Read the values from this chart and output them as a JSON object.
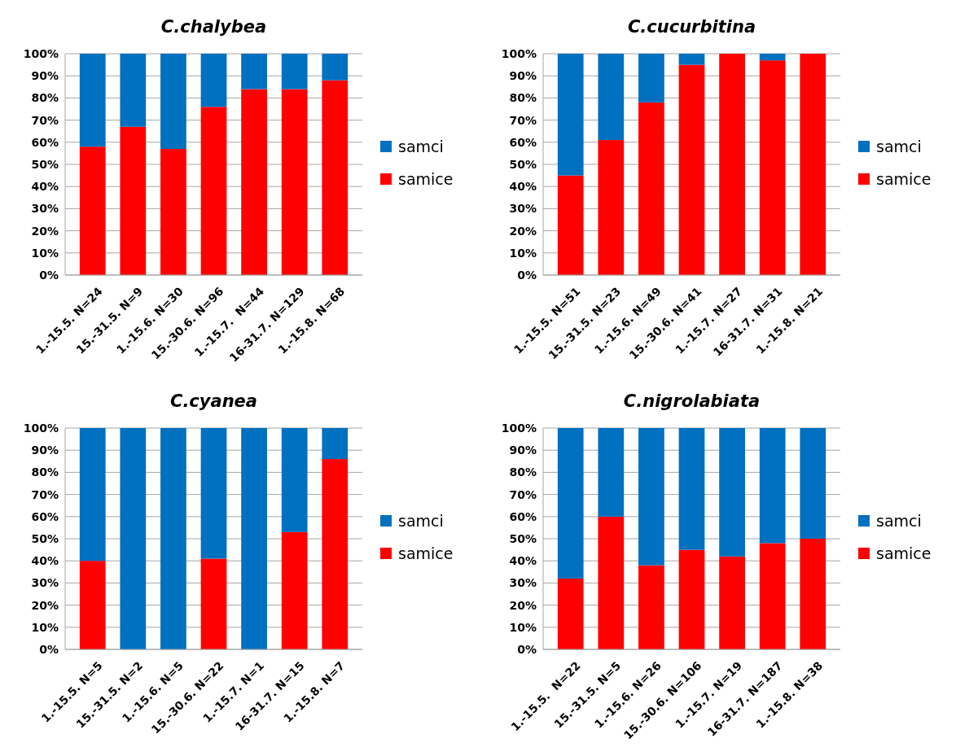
{
  "chart_data": [
    {
      "type": "bar",
      "title": "C.chalybea",
      "categories": [
        "1.-15.5. N=24",
        "15.-31.5. N=9",
        "1.-15.6. N=30",
        "15.-30.6. N=96",
        "1.-15.7.  N=44",
        "16-31.7. N=129",
        "1.-15.8. N=68"
      ],
      "stacked": true,
      "ylim": [
        0,
        100
      ],
      "yticks": [
        {
          "value": 0,
          "label": "0%"
        },
        {
          "value": 10,
          "label": "10%"
        },
        {
          "value": 20,
          "label": "20%"
        },
        {
          "value": 30,
          "label": "30%"
        },
        {
          "value": 40,
          "label": "40%"
        },
        {
          "value": 50,
          "label": "50%"
        },
        {
          "value": 60,
          "label": "60%"
        },
        {
          "value": 70,
          "label": "70%"
        },
        {
          "value": 80,
          "label": "80%"
        },
        {
          "value": 90,
          "label": "90%"
        },
        {
          "value": 100,
          "label": "100%"
        }
      ],
      "grid": "y",
      "legend": "right",
      "series": [
        {
          "name": "samice",
          "color": "#ff0000",
          "values": [
            58,
            67,
            57,
            76,
            84,
            84,
            88
          ]
        },
        {
          "name": "samci",
          "color": "#0070c0",
          "values": [
            42,
            33,
            43,
            24,
            16,
            16,
            12
          ]
        }
      ]
    },
    {
      "type": "bar",
      "title": "C.cucurbitina",
      "categories": [
        "1.-15.5. N=51",
        "15.-31.5. N=23",
        "1.-15.6. N=49",
        "15.-30.6. N=41",
        "1.-15.7. N=27",
        "16-31.7. N=31",
        "1.-15.8. N=21"
      ],
      "stacked": true,
      "ylim": [
        0,
        100
      ],
      "yticks": [
        {
          "value": 0,
          "label": "0%"
        },
        {
          "value": 10,
          "label": "10%"
        },
        {
          "value": 20,
          "label": "20%"
        },
        {
          "value": 30,
          "label": "30%"
        },
        {
          "value": 40,
          "label": "40%"
        },
        {
          "value": 50,
          "label": "50%"
        },
        {
          "value": 60,
          "label": "60%"
        },
        {
          "value": 70,
          "label": "70%"
        },
        {
          "value": 80,
          "label": "80%"
        },
        {
          "value": 90,
          "label": "90%"
        },
        {
          "value": 100,
          "label": "100%"
        }
      ],
      "grid": "y",
      "legend": "right",
      "series": [
        {
          "name": "samice",
          "color": "#ff0000",
          "values": [
            45,
            61,
            78,
            95,
            100,
            97,
            100
          ]
        },
        {
          "name": "samci",
          "color": "#0070c0",
          "values": [
            55,
            39,
            22,
            5,
            0,
            3,
            0
          ]
        }
      ]
    },
    {
      "type": "bar",
      "title": "C.cyanea",
      "categories": [
        "1.-15.5. N=5",
        "15.-31.5. N=2",
        "1.-15.6. N=5",
        "15.-30.6. N=22",
        "1.-15.7. N=1",
        "16-31.7. N=15",
        "1.-15.8. N=7"
      ],
      "stacked": true,
      "ylim": [
        0,
        100
      ],
      "yticks": [
        {
          "value": 0,
          "label": "0%"
        },
        {
          "value": 10,
          "label": "10%"
        },
        {
          "value": 20,
          "label": "20%"
        },
        {
          "value": 30,
          "label": "30%"
        },
        {
          "value": 40,
          "label": "40%"
        },
        {
          "value": 50,
          "label": "50%"
        },
        {
          "value": 60,
          "label": "60%"
        },
        {
          "value": 70,
          "label": "70%"
        },
        {
          "value": 80,
          "label": "80%"
        },
        {
          "value": 90,
          "label": "90%"
        },
        {
          "value": 100,
          "label": "100%"
        }
      ],
      "grid": "y",
      "legend": "right",
      "series": [
        {
          "name": "samice",
          "color": "#ff0000",
          "values": [
            40,
            0,
            0,
            41,
            0,
            53,
            86
          ]
        },
        {
          "name": "samci",
          "color": "#0070c0",
          "values": [
            60,
            100,
            100,
            59,
            100,
            47,
            14
          ]
        }
      ]
    },
    {
      "type": "bar",
      "title": "C.nigrolabiata",
      "categories": [
        "1.-15.5.  N=22",
        "15.-31.5. N=5",
        "1.-15.6. N=26",
        "15.-30.6. N=106",
        "1.-15.7. N=19",
        "16-31.7. N=187",
        "1.-15.8. N=38"
      ],
      "stacked": true,
      "ylim": [
        0,
        100
      ],
      "yticks": [
        {
          "value": 0,
          "label": "0%"
        },
        {
          "value": 10,
          "label": "10%"
        },
        {
          "value": 20,
          "label": "20%"
        },
        {
          "value": 30,
          "label": "30%"
        },
        {
          "value": 40,
          "label": "40%"
        },
        {
          "value": 50,
          "label": "50%"
        },
        {
          "value": 60,
          "label": "60%"
        },
        {
          "value": 70,
          "label": "70%"
        },
        {
          "value": 80,
          "label": "80%"
        },
        {
          "value": 90,
          "label": "90%"
        },
        {
          "value": 100,
          "label": "100%"
        }
      ],
      "grid": "y",
      "legend": "right",
      "series": [
        {
          "name": "samice",
          "color": "#ff0000",
          "values": [
            32,
            60,
            38,
            45,
            42,
            48,
            50
          ]
        },
        {
          "name": "samci",
          "color": "#0070c0",
          "values": [
            68,
            40,
            62,
            55,
            58,
            52,
            50
          ]
        }
      ]
    }
  ]
}
